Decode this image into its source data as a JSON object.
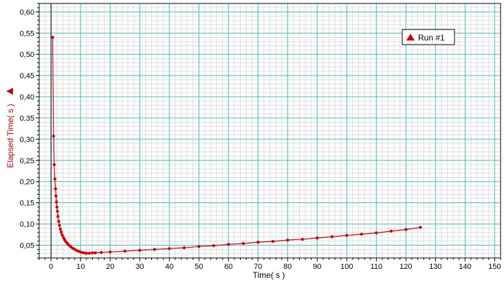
{
  "colors": {
    "series": "#d40000",
    "major_grid": "#3ec8c8",
    "minor_grid": "#dddddd",
    "y_title": "#cc0000",
    "frame": "#000000"
  },
  "chart_data": {
    "type": "scatter",
    "xlabel": "Time( s )",
    "ylabel": "Elapsed Time( s )",
    "xlim": [
      -4,
      152
    ],
    "ylim": [
      0.02,
      0.62
    ],
    "x_ticks": [
      "0",
      "10",
      "20",
      "30",
      "40",
      "50",
      "60",
      "70",
      "80",
      "90",
      "100",
      "110",
      "120",
      "130",
      "140",
      "150"
    ],
    "x_tick_values": [
      0,
      10,
      20,
      30,
      40,
      50,
      60,
      70,
      80,
      90,
      100,
      110,
      120,
      130,
      140,
      150
    ],
    "y_ticks": [
      "0,05",
      "0,10",
      "0,15",
      "0,20",
      "0,25",
      "0,30",
      "0,35",
      "0,40",
      "0,45",
      "0,50",
      "0,55",
      "0,60"
    ],
    "y_tick_values": [
      0.05,
      0.1,
      0.15,
      0.2,
      0.25,
      0.3,
      0.35,
      0.4,
      0.45,
      0.5,
      0.55,
      0.6
    ],
    "grid": true,
    "legend": {
      "position": "top-right",
      "entries": [
        "Run #1"
      ]
    },
    "series": [
      {
        "name": "Run #1",
        "marker": "triangle",
        "line": true,
        "x": [
          0.54,
          0.85,
          1.09,
          1.31,
          1.51,
          1.68,
          1.85,
          2.0,
          2.15,
          2.35,
          2.6,
          2.85,
          3.15,
          3.45,
          3.8,
          4.2,
          4.6,
          5.05,
          5.55,
          6.1,
          6.7,
          7.35,
          8.05,
          8.8,
          9.6,
          10.4,
          11.2,
          12.0,
          13.0,
          14.0,
          15.0,
          17.0,
          20.0,
          25.0,
          30.0,
          35.0,
          40.0,
          45.0,
          50.0,
          55.0,
          60.0,
          65.0,
          70.0,
          75.0,
          80.0,
          85.0,
          90.0,
          95.0,
          100.0,
          105.0,
          110.0,
          115.0,
          120.0,
          124.9
        ],
        "y": [
          0.54,
          0.307,
          0.24,
          0.206,
          0.183,
          0.166,
          0.152,
          0.14,
          0.13,
          0.118,
          0.106,
          0.097,
          0.088,
          0.081,
          0.074,
          0.068,
          0.063,
          0.058,
          0.054,
          0.05,
          0.046,
          0.043,
          0.04,
          0.037,
          0.035,
          0.033,
          0.032,
          0.031,
          0.031,
          0.032,
          0.032,
          0.033,
          0.034,
          0.036,
          0.038,
          0.04,
          0.042,
          0.044,
          0.047,
          0.049,
          0.052,
          0.054,
          0.057,
          0.059,
          0.062,
          0.064,
          0.067,
          0.07,
          0.073,
          0.076,
          0.079,
          0.083,
          0.087,
          0.092
        ]
      }
    ]
  }
}
